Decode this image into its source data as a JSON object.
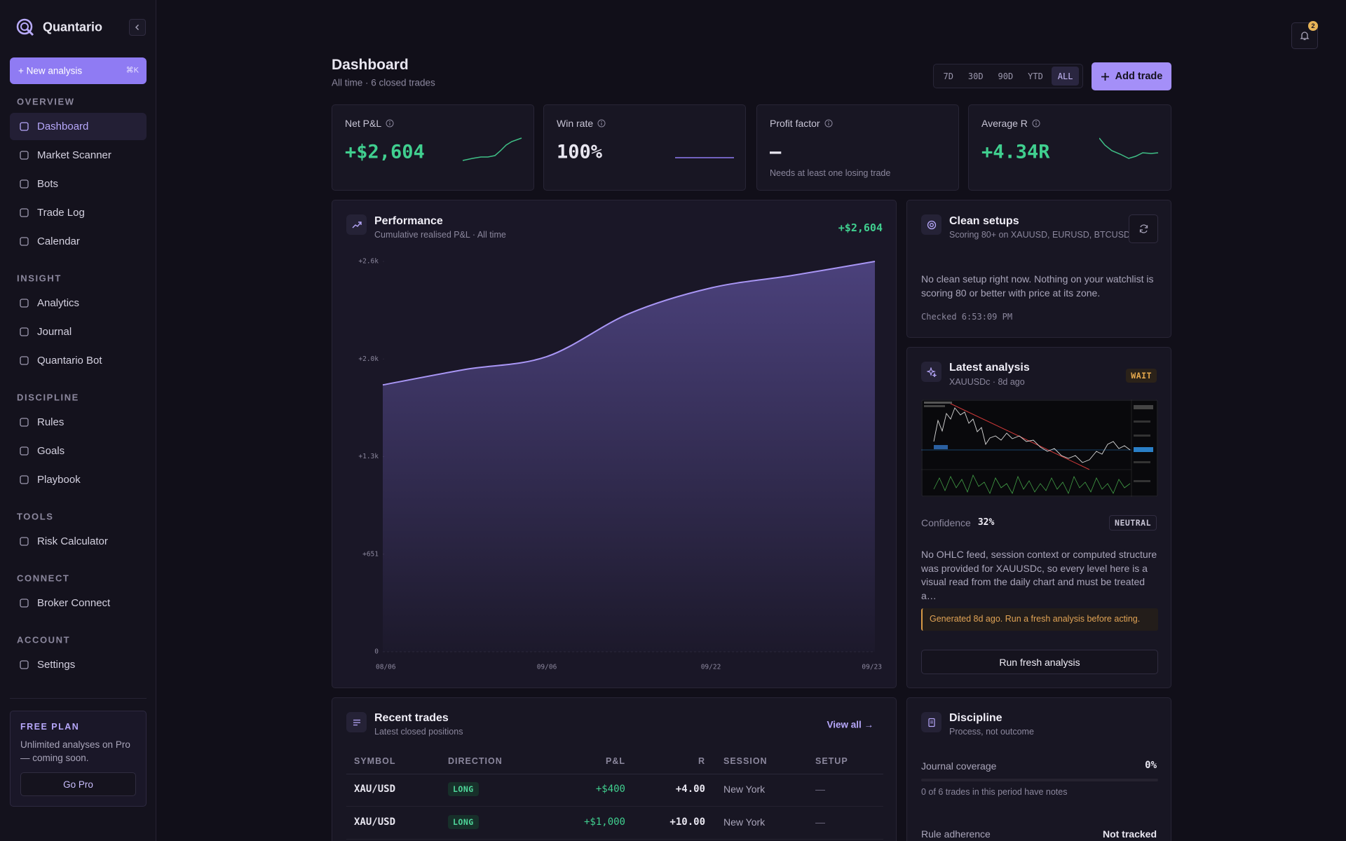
{
  "sidebar": {
    "brand": "Quantario",
    "new_analysis": "+ New analysis",
    "shortcut": "⌘K",
    "sections": [
      {
        "title": "OVERVIEW",
        "items": [
          "Dashboard",
          "Market Scanner",
          "Bots",
          "Trade Log",
          "Calendar"
        ]
      },
      {
        "title": "INSIGHT",
        "items": [
          "Analytics",
          "Journal",
          "Quantario Bot"
        ]
      },
      {
        "title": "DISCIPLINE",
        "items": [
          "Rules",
          "Goals",
          "Playbook"
        ]
      },
      {
        "title": "TOOLS",
        "items": [
          "Risk Calculator"
        ]
      },
      {
        "title": "CONNECT",
        "items": [
          "Broker Connect"
        ]
      },
      {
        "title": "ACCOUNT",
        "items": [
          "Settings"
        ]
      }
    ],
    "plan": {
      "title": "FREE PLAN",
      "text": "Unlimited analyses on Pro — coming soon.",
      "button": "Go Pro"
    }
  },
  "header": {
    "title": "Dashboard",
    "subtitle": "All time · 6 closed trades",
    "ranges": [
      "7D",
      "30D",
      "90D",
      "YTD",
      "ALL"
    ],
    "add_trade": "Add trade",
    "notifications": 2
  },
  "stats": [
    {
      "label": "Net P&L",
      "value": "+$2,604"
    },
    {
      "label": "Win rate",
      "value": "100%"
    },
    {
      "label": "Profit factor",
      "value": "—",
      "note": "Needs at least one losing trade"
    },
    {
      "label": "Average R",
      "value": "+4.34R"
    }
  ],
  "performance": {
    "title": "Performance",
    "subtitle": "Cumulative realised P&L · All time",
    "total": "+$2,604",
    "chart": {
      "type": "line",
      "categories": [
        "08/06",
        null,
        "09/06",
        null,
        "09/22",
        null,
        "09/23"
      ],
      "values": [
        1780,
        1883,
        1969,
        2255,
        2427,
        2511,
        2604
      ],
      "color": "#a996f5",
      "ylim": [
        0,
        2604
      ],
      "yticks": [
        0,
        {
          "value": 651,
          "label": "+651"
        },
        {
          "value": 1302,
          "label": "+1.3k"
        },
        {
          "value": 1953,
          "label": "+2.0k"
        },
        {
          "value": 2604,
          "label": "+2.6k"
        }
      ]
    }
  },
  "clean_setups": {
    "title": "Clean setups",
    "subtitle": "Scoring 80+ on XAUUSD, EURUSD, BTCUSD",
    "message": "No clean setup right now. Nothing on your watchlist is scoring 80 or better with price at its zone.",
    "checked": "Checked 6:53:09 PM"
  },
  "latest_analysis": {
    "title": "Latest analysis",
    "subtitle": "XAUUSDc · 8d ago",
    "badge": "WAIT",
    "confidence_label": "Confidence",
    "confidence": "32%",
    "bias": "NEUTRAL",
    "summary": "No OHLC feed, session context or computed structure was provided for XAUUSDc, so every level here is a visual read from the daily chart and must be treated a…",
    "warning": "Generated 8d ago. Run a fresh analysis before acting.",
    "button": "Run fresh analysis"
  },
  "recent_trades": {
    "title": "Recent trades",
    "subtitle": "Latest closed positions",
    "view_all": "View all →",
    "table": {
      "columns": [
        "SYMBOL",
        "DIRECTION",
        "P&L",
        "R",
        "SESSION",
        "SETUP"
      ],
      "rows": [
        [
          "XAU/USD",
          "LONG",
          "+$400",
          "+4.00",
          "New York",
          "—"
        ],
        [
          "XAU/USD",
          "LONG",
          "+$1,000",
          "+10.00",
          "New York",
          "—"
        ]
      ]
    }
  },
  "discipline": {
    "title": "Discipline",
    "subtitle": "Process, not outcome",
    "journal_label": "Journal coverage",
    "journal_value": "0%",
    "journal_note": "0 of 6 trades in this period have notes",
    "rule_label": "Rule adherence",
    "rule_value": "Not tracked"
  }
}
